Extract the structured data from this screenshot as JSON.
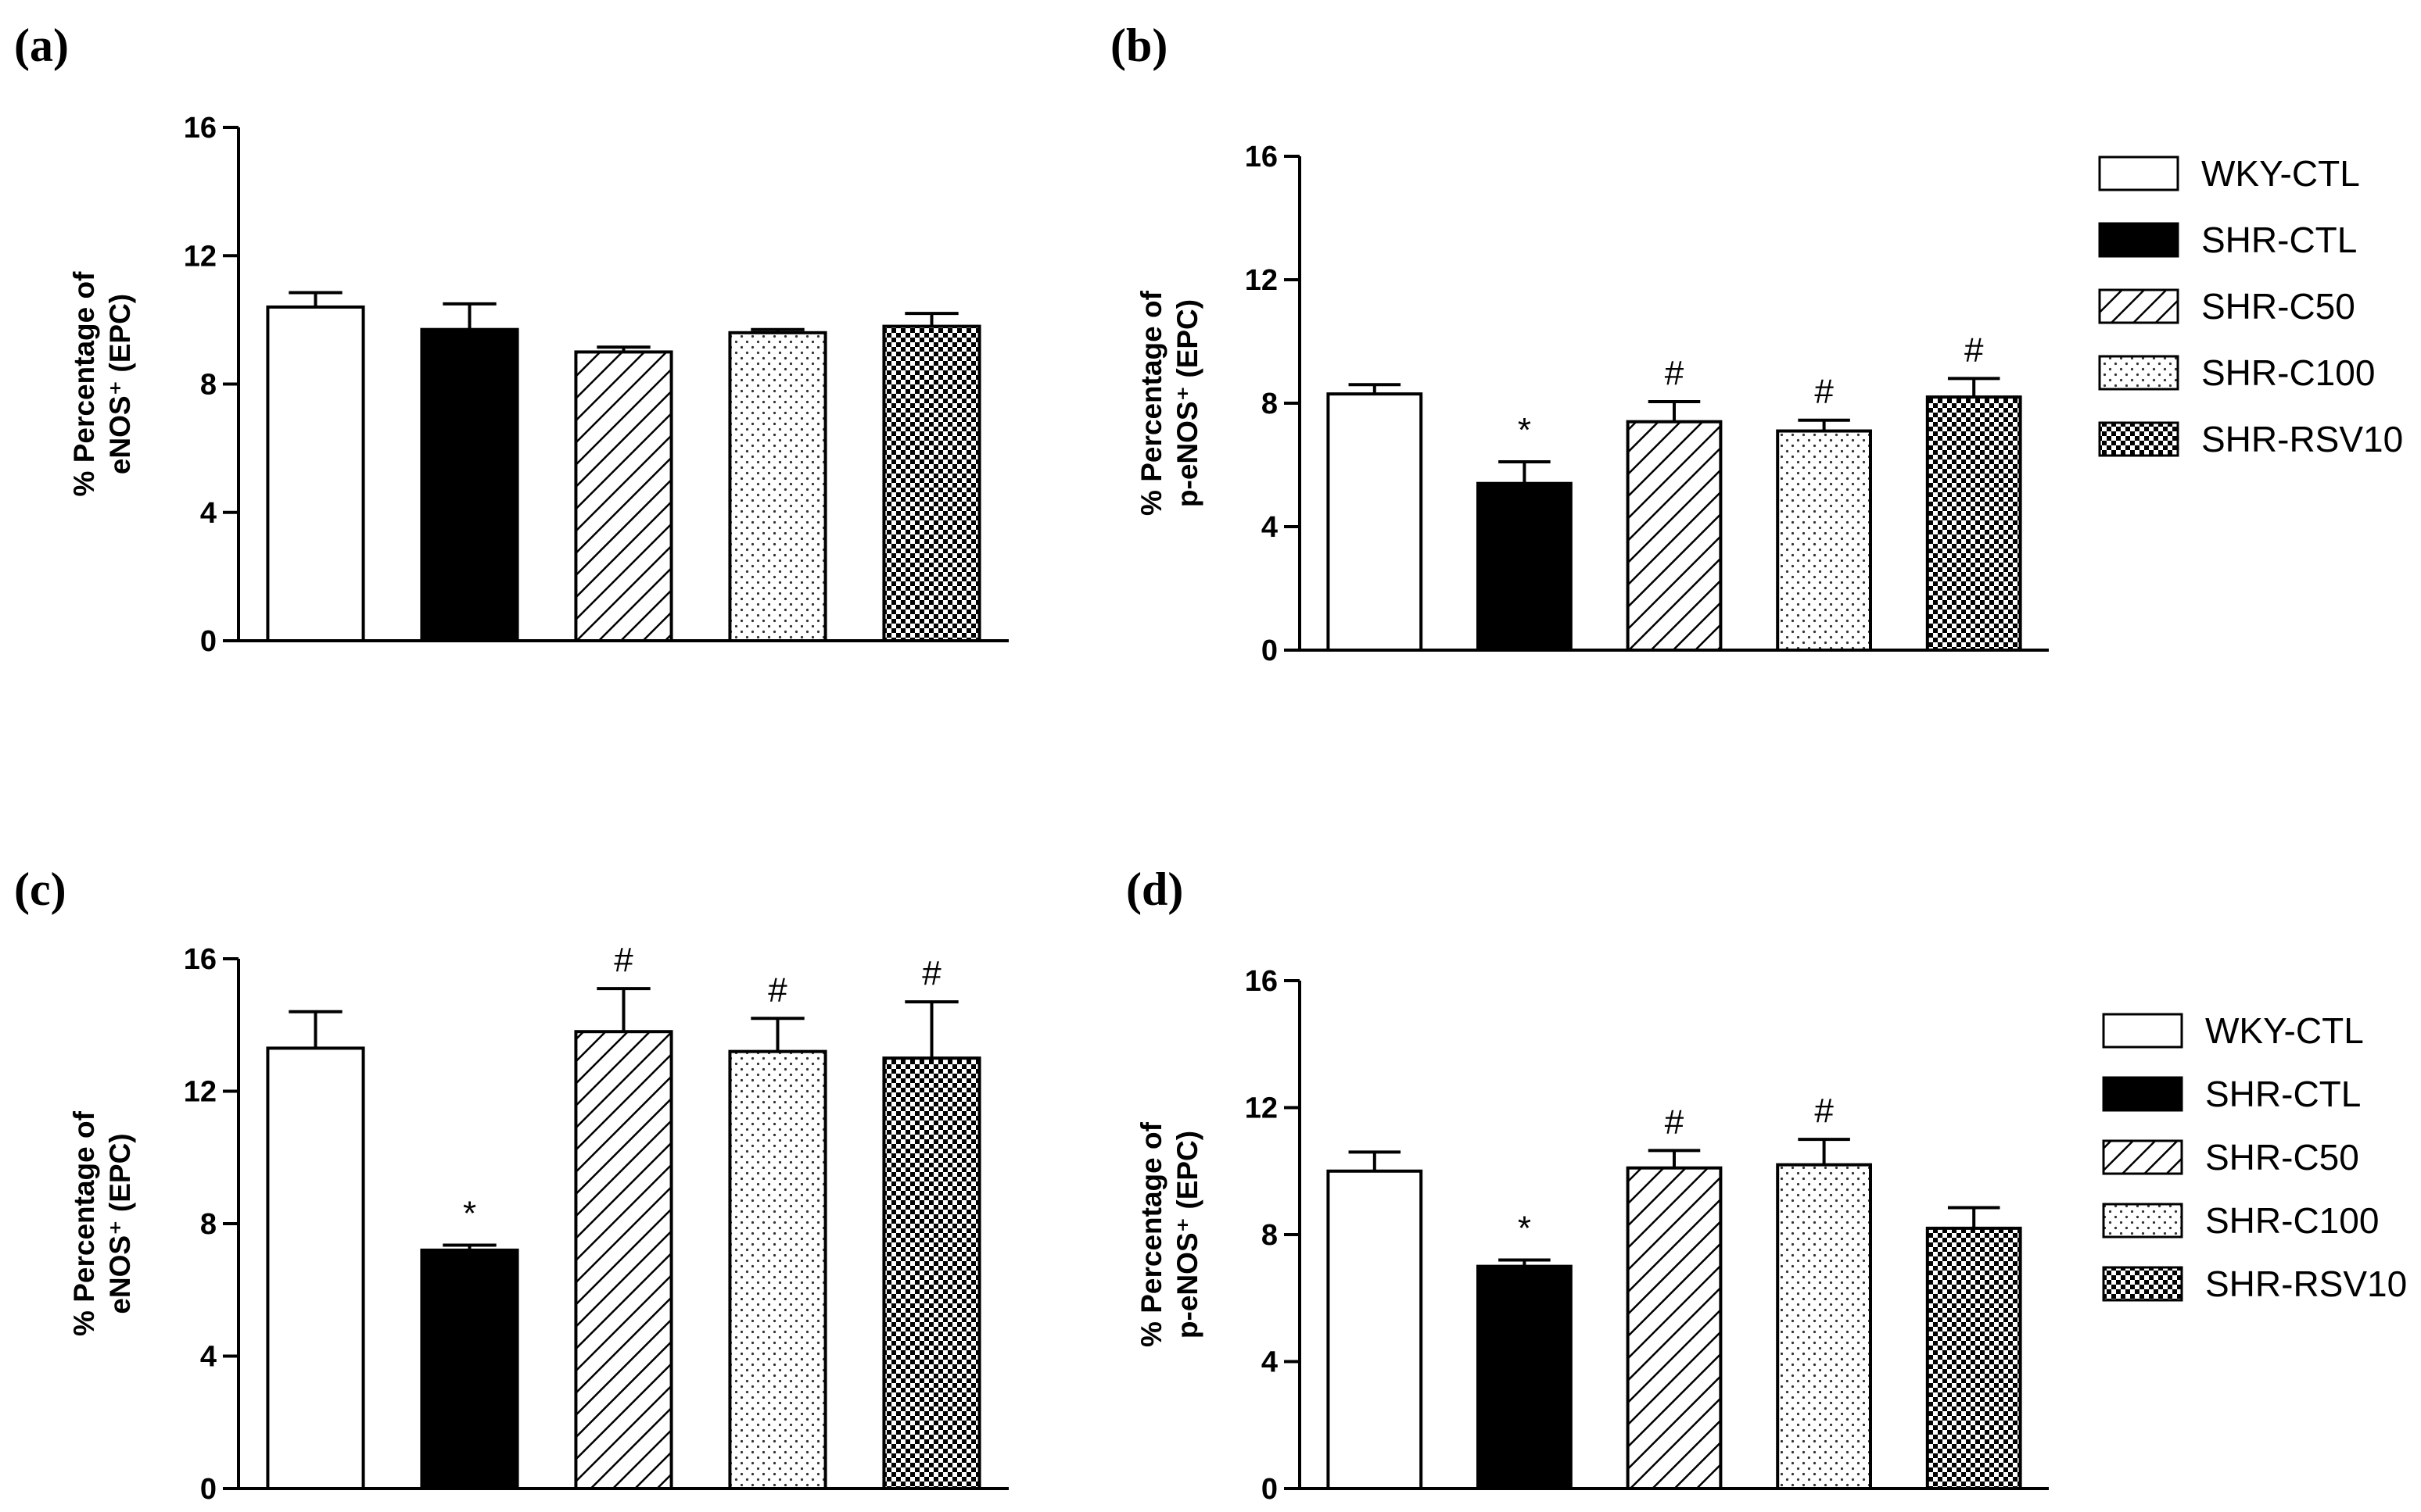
{
  "chart_data": [
    {
      "type": "bar",
      "panel": "(a)",
      "categories": [
        "WKY-CTL",
        "SHR-CTL",
        "SHR-C50",
        "SHR-C100",
        "SHR-RSV10"
      ],
      "values": [
        10.4,
        9.7,
        9.0,
        9.6,
        9.8
      ],
      "errors": [
        0.45,
        0.8,
        0.15,
        0.1,
        0.4
      ],
      "markers": [
        "",
        "",
        "",
        "",
        ""
      ],
      "ylabel_line1": "% Percentage of",
      "ylabel_line2": "eNOS⁺ (EPC)",
      "ylim": [
        0,
        16
      ],
      "yticks": [
        "0",
        "4",
        "8",
        "12",
        "16"
      ],
      "legend": null
    },
    {
      "type": "bar",
      "panel": "(b)",
      "categories": [
        "WKY-CTL",
        "SHR-CTL",
        "SHR-C50",
        "SHR-C100",
        "SHR-RSV10"
      ],
      "values": [
        8.3,
        5.4,
        7.4,
        7.1,
        8.2
      ],
      "errors": [
        0.3,
        0.7,
        0.65,
        0.35,
        0.6
      ],
      "markers": [
        "",
        "*",
        "#",
        "#",
        "#"
      ],
      "ylabel_line1": "% Percentage of",
      "ylabel_line2": "p-eNOS⁺ (EPC)",
      "ylim": [
        0,
        16
      ],
      "yticks": [
        "0",
        "4",
        "8",
        "12",
        "16"
      ],
      "legend": [
        "WKY-CTL",
        "SHR-CTL",
        "SHR-C50",
        "SHR-C100",
        "SHR-RSV10"
      ]
    },
    {
      "type": "bar",
      "panel": "(c)",
      "categories": [
        "WKY-CTL",
        "SHR-CTL",
        "SHR-C50",
        "SHR-C100",
        "SHR-RSV10"
      ],
      "values": [
        13.3,
        7.2,
        13.8,
        13.2,
        13.0
      ],
      "errors": [
        1.1,
        0.15,
        1.3,
        1.0,
        1.7
      ],
      "markers": [
        "",
        "*",
        "#",
        "#",
        "#"
      ],
      "ylabel_line1": "% Percentage of",
      "ylabel_line2": "eNOS⁺ (EPC)",
      "ylim": [
        0,
        16
      ],
      "yticks": [
        "0",
        "4",
        "8",
        "12",
        "16"
      ],
      "legend": null
    },
    {
      "type": "bar",
      "panel": "(d)",
      "categories": [
        "WKY-CTL",
        "SHR-CTL",
        "SHR-C50",
        "SHR-C100",
        "SHR-RSV10"
      ],
      "values": [
        10.0,
        7.0,
        10.1,
        10.2,
        8.2
      ],
      "errors": [
        0.6,
        0.2,
        0.55,
        0.8,
        0.65
      ],
      "markers": [
        "",
        "*",
        "#",
        "#",
        ""
      ],
      "ylabel_line1": "% Percentage of",
      "ylabel_line2": "p-eNOS⁺ (EPC)",
      "ylim": [
        0,
        16
      ],
      "yticks": [
        "0",
        "4",
        "8",
        "12",
        "16"
      ],
      "legend": [
        "WKY-CTL",
        "SHR-CTL",
        "SHR-C50",
        "SHR-C100",
        "SHR-RSV10"
      ]
    }
  ]
}
